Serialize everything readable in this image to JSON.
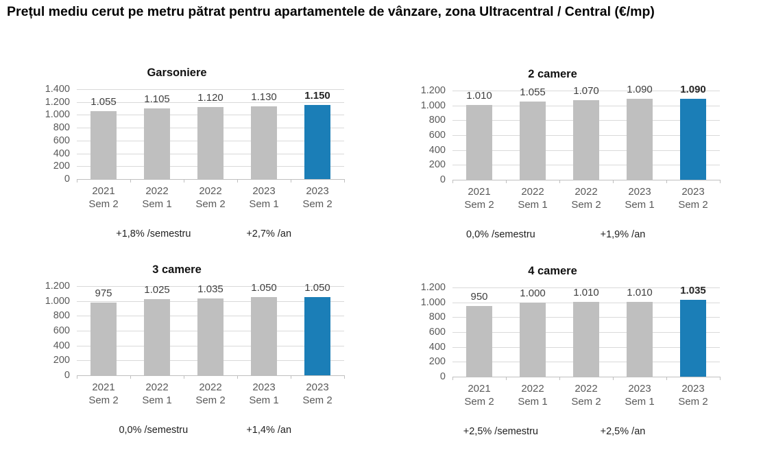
{
  "header": {
    "title": "Prețul mediu cerut pe metru pătrat pentru apartamentele de vânzare, zona Ultracentral / Central (€/mp)"
  },
  "colors": {
    "bar": "#BFBFBF",
    "bar_highlight": "#1B7EB7",
    "gridline": "#D9D9D9",
    "axis_line": "#BFBFBF",
    "axis_text": "#595959",
    "value_text": "#3F3F3F",
    "note_text": "#1F1F1F",
    "title_text": "#050505"
  },
  "chart_data": [
    {
      "type": "bar",
      "title": "Garsoniere",
      "categories": [
        "2021 Sem 2",
        "2022 Sem 1",
        "2022 Sem 2",
        "2023 Sem 1",
        "2023 Sem 2"
      ],
      "category_lines": [
        [
          "2021",
          "Sem 2"
        ],
        [
          "2022",
          "Sem 1"
        ],
        [
          "2022",
          "Sem 2"
        ],
        [
          "2023",
          "Sem 1"
        ],
        [
          "2023",
          "Sem 2"
        ]
      ],
      "values": [
        1055,
        1105,
        1120,
        1130,
        1150
      ],
      "value_labels": [
        "1.055",
        "1.105",
        "1.120",
        "1.130",
        "1.150"
      ],
      "ylim": [
        0,
        1400
      ],
      "ytick_step": 200,
      "ytick_labels": [
        "0",
        "200",
        "400",
        "600",
        "800",
        "1.000",
        "1.200",
        "1.400"
      ],
      "grid": true,
      "legend": false,
      "highlight_index": 4,
      "highlight_label_bold": true,
      "notes": {
        "semester": "+1,8% /semestru",
        "annual": "+2,7% /an"
      }
    },
    {
      "type": "bar",
      "title": "2 camere",
      "categories": [
        "2021 Sem 2",
        "2022 Sem 1",
        "2022 Sem 2",
        "2023 Sem 1",
        "2023 Sem 2"
      ],
      "category_lines": [
        [
          "2021",
          "Sem 2"
        ],
        [
          "2022",
          "Sem 1"
        ],
        [
          "2022",
          "Sem 2"
        ],
        [
          "2023",
          "Sem 1"
        ],
        [
          "2023",
          "Sem 2"
        ]
      ],
      "values": [
        1010,
        1055,
        1070,
        1090,
        1090
      ],
      "value_labels": [
        "1.010",
        "1.055",
        "1.070",
        "1.090",
        "1.090"
      ],
      "ylim": [
        0,
        1200
      ],
      "ytick_step": 200,
      "ytick_labels": [
        "0",
        "200",
        "400",
        "600",
        "800",
        "1.000",
        "1.200"
      ],
      "grid": true,
      "legend": false,
      "highlight_index": 4,
      "highlight_label_bold": true,
      "notes": {
        "semester": "0,0% /semestru",
        "annual": "+1,9% /an"
      }
    },
    {
      "type": "bar",
      "title": "3 camere",
      "categories": [
        "2021 Sem 2",
        "2022 Sem 1",
        "2022 Sem 2",
        "2023 Sem 1",
        "2023 Sem 2"
      ],
      "category_lines": [
        [
          "2021",
          "Sem 2"
        ],
        [
          "2022",
          "Sem 1"
        ],
        [
          "2022",
          "Sem 2"
        ],
        [
          "2023",
          "Sem 1"
        ],
        [
          "2023",
          "Sem 2"
        ]
      ],
      "values": [
        975,
        1025,
        1035,
        1050,
        1050
      ],
      "value_labels": [
        "975",
        "1.025",
        "1.035",
        "1.050",
        "1.050"
      ],
      "ylim": [
        0,
        1200
      ],
      "ytick_step": 200,
      "ytick_labels": [
        "0",
        "200",
        "400",
        "600",
        "800",
        "1.000",
        "1.200"
      ],
      "grid": true,
      "legend": false,
      "highlight_index": 4,
      "highlight_label_bold": false,
      "notes": {
        "semester": "0,0% /semestru",
        "annual": "+1,4% /an"
      }
    },
    {
      "type": "bar",
      "title": "4 camere",
      "categories": [
        "2021 Sem 2",
        "2022 Sem 1",
        "2022 Sem 2",
        "2023 Sem 1",
        "2023 Sem 2"
      ],
      "category_lines": [
        [
          "2021",
          "Sem 2"
        ],
        [
          "2022",
          "Sem 1"
        ],
        [
          "2022",
          "Sem 2"
        ],
        [
          "2023",
          "Sem 1"
        ],
        [
          "2023",
          "Sem 2"
        ]
      ],
      "values": [
        950,
        1000,
        1010,
        1010,
        1035
      ],
      "value_labels": [
        "950",
        "1.000",
        "1.010",
        "1.010",
        "1.035"
      ],
      "ylim": [
        0,
        1200
      ],
      "ytick_step": 200,
      "ytick_labels": [
        "0",
        "200",
        "400",
        "600",
        "800",
        "1.000",
        "1.200"
      ],
      "grid": true,
      "legend": false,
      "highlight_index": 4,
      "highlight_label_bold": true,
      "notes": {
        "semester": "+2,5% /semestru",
        "annual": "+2,5% /an"
      }
    }
  ]
}
